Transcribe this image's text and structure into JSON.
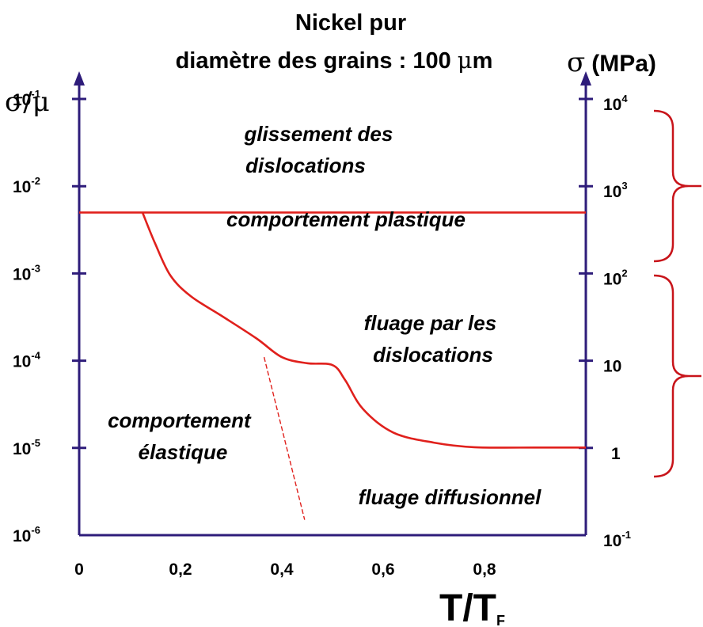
{
  "title": {
    "line1": "Nickel pur",
    "line2_prefix": "diamètre des grains : 100 ",
    "line2_mu": "μ",
    "line2_suffix": "m"
  },
  "colors": {
    "axis": "#2e1c7a",
    "curve": "#e0201c",
    "bracket": "#c8141a",
    "text": "#000000"
  },
  "chart_data": {
    "type": "line",
    "x_axis": {
      "label_main": "T/T",
      "label_sub": "F",
      "range": [
        0,
        1.0
      ],
      "ticks": [
        0,
        0.2,
        0.4,
        0.6,
        0.8
      ],
      "tick_labels": [
        "0",
        "0,2",
        "0,4",
        "0,6",
        "0,8"
      ]
    },
    "y_axis_left": {
      "label": "σ/μ",
      "scale": "log",
      "range": [
        1e-06,
        1
      ],
      "ticks": [
        {
          "value": 0.1,
          "base": "10",
          "exp": "-1"
        },
        {
          "value": 0.01,
          "base": "10",
          "exp": "-2"
        },
        {
          "value": 0.001,
          "base": "10",
          "exp": "-3"
        },
        {
          "value": 0.0001,
          "base": "10",
          "exp": "-4"
        },
        {
          "value": 1e-05,
          "base": "10",
          "exp": "-5"
        },
        {
          "value": 1e-06,
          "base": "10",
          "exp": "-6"
        }
      ]
    },
    "y_axis_right": {
      "label_symbol": "σ",
      "label_unit": "(MPa)",
      "ticks": [
        {
          "at_left_value": 0.1,
          "base": "10",
          "exp": "4"
        },
        {
          "at_left_value": 0.01,
          "base": "10",
          "exp": "3"
        },
        {
          "at_left_value": 0.001,
          "base": "10",
          "exp": "2"
        },
        {
          "at_left_value": 0.0001,
          "base": "10",
          "exp": ""
        },
        {
          "at_left_value": 1e-05,
          "base": "1",
          "exp": ""
        },
        {
          "at_left_value": 1e-06,
          "base": "10",
          "exp": "-1"
        }
      ]
    },
    "series": [
      {
        "style": "solid",
        "points": [
          [
            0,
            0.005
          ],
          [
            1.0,
            0.005
          ]
        ]
      },
      {
        "style": "solid",
        "points": [
          [
            0.125,
            0.005
          ],
          [
            0.15,
            0.0022
          ],
          [
            0.18,
            0.00095
          ],
          [
            0.22,
            0.00055
          ],
          [
            0.28,
            0.00033
          ],
          [
            0.35,
            0.00018
          ],
          [
            0.4,
            0.00011
          ],
          [
            0.45,
            9.35e-05
          ],
          [
            0.5,
            8.9e-05
          ],
          [
            0.525,
            6e-05
          ],
          [
            0.56,
            2.8e-05
          ],
          [
            0.62,
            1.5e-05
          ],
          [
            0.7,
            1.15e-05
          ],
          [
            0.78,
            1.02e-05
          ],
          [
            0.9,
            1.01e-05
          ],
          [
            1.0,
            1.01e-05
          ]
        ]
      },
      {
        "style": "dashed",
        "points": [
          [
            0.365,
            0.00011
          ],
          [
            0.445,
            1.5e-06
          ]
        ]
      }
    ],
    "regions": [
      {
        "lines": [
          "glissement des",
          "dislocations"
        ]
      },
      {
        "lines": [
          "comportement plastique"
        ]
      },
      {
        "lines": [
          "fluage par les",
          "dislocations"
        ]
      },
      {
        "lines": [
          "comportement",
          "élastique"
        ]
      },
      {
        "lines": [
          "fluage diffusionnel"
        ]
      }
    ]
  }
}
